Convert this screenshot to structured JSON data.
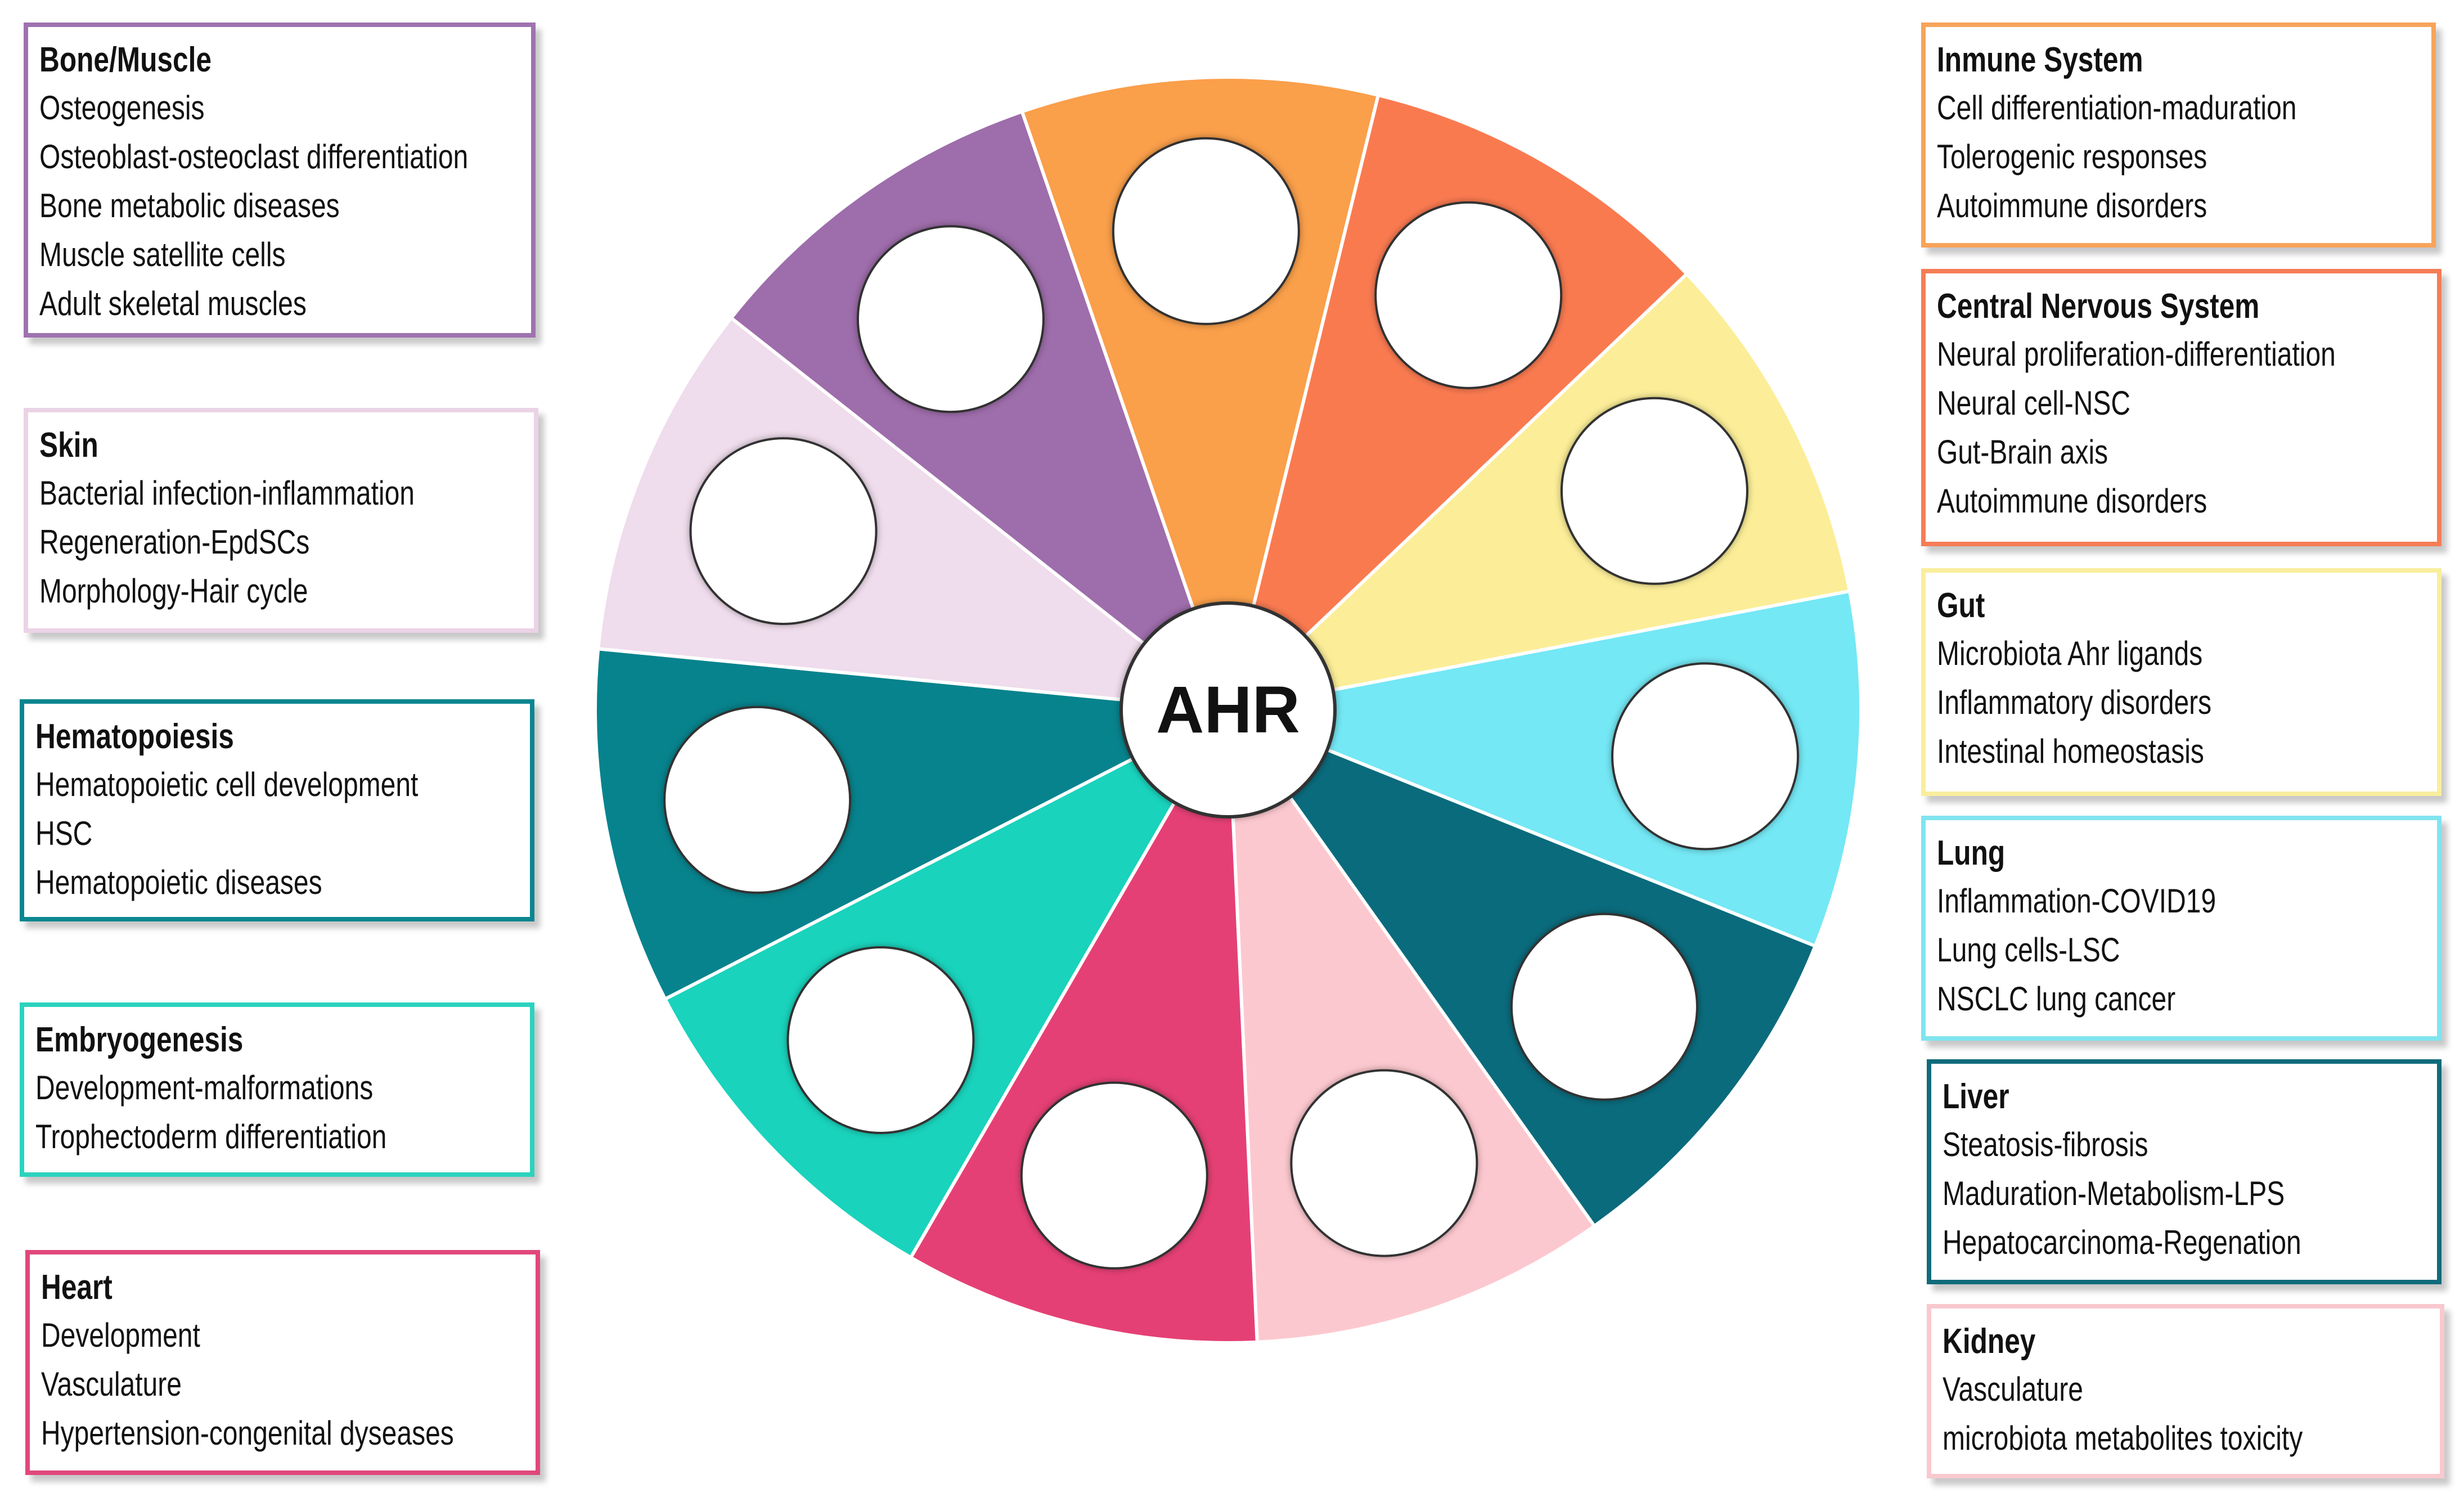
{
  "center_label": "AHR",
  "segments": [
    {
      "name": "immune",
      "color": "#FA9F4A"
    },
    {
      "name": "cns",
      "color": "#FA7A50"
    },
    {
      "name": "gut",
      "color": "#FCEE98"
    },
    {
      "name": "lung",
      "color": "#74E8F5"
    },
    {
      "name": "liver",
      "color": "#0A6B7C"
    },
    {
      "name": "kidney",
      "color": "#FCC8CF"
    },
    {
      "name": "heart",
      "color": "#E54075"
    },
    {
      "name": "embryogenesis",
      "color": "#19D3BC"
    },
    {
      "name": "hematopoiesis",
      "color": "#07838D"
    },
    {
      "name": "skin",
      "color": "#EFDCEC"
    },
    {
      "name": "bone-muscle",
      "color": "#9E6DAB"
    }
  ],
  "panels": {
    "bone_muscle": {
      "color": "#9F72AF",
      "title": "Bone/Muscle",
      "items": [
        "Osteogenesis",
        "Osteoblast-osteoclast differentiation",
        "Bone metabolic diseases",
        "Muscle satellite cells",
        "Adult skeletal muscles"
      ]
    },
    "skin": {
      "color": "#EBD3E6",
      "title": "Skin",
      "items": [
        "Bacterial infection-inflammation",
        "Regeneration-EpdSCs",
        "Morphology-Hair cycle"
      ]
    },
    "hematopoiesis": {
      "color": "#0A8690",
      "title": "Hematopoiesis",
      "items": [
        "Hematopoietic cell development",
        "HSC",
        "Hematopoietic diseases"
      ]
    },
    "embryogenesis": {
      "color": "#2BD3BE",
      "title": "Embryogenesis",
      "items": [
        "Development-malformations",
        "Trophectoderm differentiation"
      ]
    },
    "heart": {
      "color": "#E0487A",
      "title": "Heart",
      "items": [
        "Development",
        "Vasculature",
        "Hypertension-congenital dyseases"
      ]
    },
    "immune": {
      "color": "#F7A45A",
      "title": "Inmune System",
      "items": [
        "Cell differentiation-maduration",
        "Tolerogenic responses",
        "Autoimmune disorders"
      ]
    },
    "cns": {
      "color": "#F67D55",
      "title": "Central Nervous System",
      "items": [
        "Neural proliferation-differentiation",
        "Neural cell-NSC",
        "Gut-Brain axis",
        "Autoimmune disorders"
      ]
    },
    "gut": {
      "color": "#F9EE9D",
      "title": "Gut",
      "items": [
        "Microbiota Ahr ligands",
        "Inflammatory disorders",
        "Intestinal homeostasis"
      ]
    },
    "lung": {
      "color": "#80E4EF",
      "title": "Lung",
      "items": [
        "Inflammation-COVID19",
        "Lung cells-LSC",
        "NSCLC lung cancer"
      ]
    },
    "liver": {
      "color": "#106B7B",
      "title": "Liver",
      "items": [
        "Steatosis-fibrosis",
        "Maduration-Metabolism-LPS",
        "Hepatocarcinoma-Regenation"
      ]
    },
    "kidney": {
      "color": "#F8C9CF",
      "title": "Kidney",
      "items": [
        "Vasculature",
        "microbiota metabolites toxicity"
      ]
    }
  }
}
